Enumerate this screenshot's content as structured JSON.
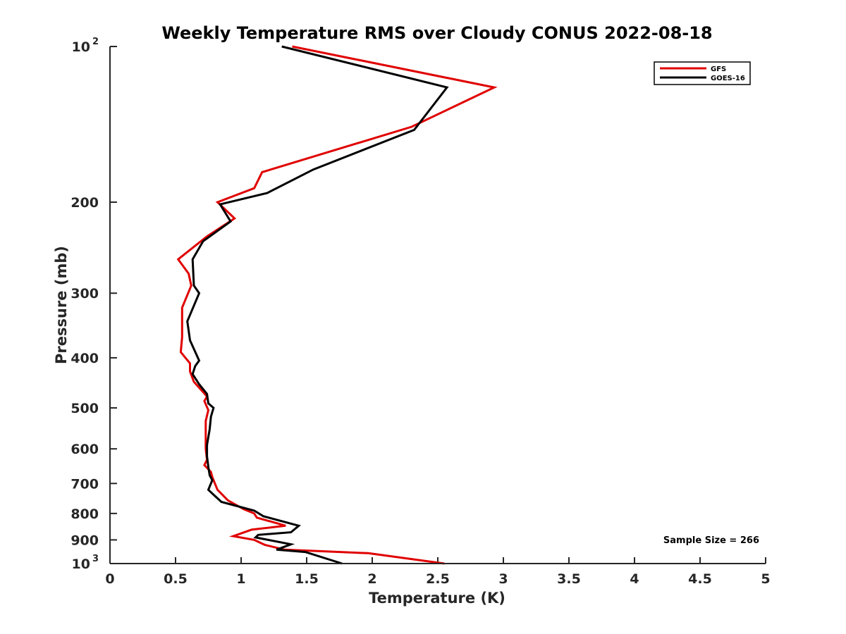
{
  "chart_data": {
    "type": "line",
    "title": "Weekly Temperature RMS over Cloudy CONUS 2022-08-18",
    "xlabel": "Temperature (K)",
    "ylabel": "Pressure (mb)",
    "xlim": [
      0,
      5
    ],
    "ylim": [
      100,
      1000
    ],
    "y_scale": "log",
    "y_reversed": true,
    "grid": false,
    "legend_position": "top-right",
    "x_ticks": [
      "0",
      "0.5",
      "1",
      "1.5",
      "2",
      "2.5",
      "3",
      "3.5",
      "4",
      "4.5",
      "5"
    ],
    "x_tick_values": [
      0,
      0.5,
      1,
      1.5,
      2,
      2.5,
      3,
      3.5,
      4,
      4.5,
      5
    ],
    "y_ticks": [
      {
        "value": 100,
        "base": "10",
        "exp": "2"
      },
      {
        "value": 200,
        "label": "200"
      },
      {
        "value": 300,
        "label": "300"
      },
      {
        "value": 400,
        "label": "400"
      },
      {
        "value": 500,
        "label": "500"
      },
      {
        "value": 600,
        "label": "600"
      },
      {
        "value": 700,
        "label": "700"
      },
      {
        "value": 800,
        "label": "800"
      },
      {
        "value": 900,
        "label": "900"
      },
      {
        "value": 1000,
        "base": "10",
        "exp": "3"
      }
    ],
    "series": [
      {
        "name": "GFS",
        "color": "#e00000",
        "points": [
          [
            1.39,
            100
          ],
          [
            2.93,
            120
          ],
          [
            2.3,
            143
          ],
          [
            1.16,
            175
          ],
          [
            1.1,
            188
          ],
          [
            0.82,
            200
          ],
          [
            0.95,
            215
          ],
          [
            0.74,
            233
          ],
          [
            0.52,
            258
          ],
          [
            0.6,
            275
          ],
          [
            0.62,
            290
          ],
          [
            0.55,
            320
          ],
          [
            0.55,
            365
          ],
          [
            0.54,
            390
          ],
          [
            0.61,
            410
          ],
          [
            0.61,
            425
          ],
          [
            0.64,
            445
          ],
          [
            0.74,
            475
          ],
          [
            0.72,
            485
          ],
          [
            0.75,
            505
          ],
          [
            0.73,
            530
          ],
          [
            0.73,
            555
          ],
          [
            0.73,
            600
          ],
          [
            0.74,
            630
          ],
          [
            0.72,
            645
          ],
          [
            0.77,
            665
          ],
          [
            0.78,
            680
          ],
          [
            0.8,
            700
          ],
          [
            0.82,
            720
          ],
          [
            0.9,
            755
          ],
          [
            1.02,
            785
          ],
          [
            1.1,
            800
          ],
          [
            1.12,
            815
          ],
          [
            1.34,
            845
          ],
          [
            1.08,
            860
          ],
          [
            0.94,
            885
          ],
          [
            1.1,
            900
          ],
          [
            1.18,
            920
          ],
          [
            1.33,
            940
          ],
          [
            1.97,
            955
          ],
          [
            2.55,
            1000
          ]
        ]
      },
      {
        "name": "GOES-16",
        "color": "#000000",
        "points": [
          [
            1.31,
            100
          ],
          [
            2.57,
            120
          ],
          [
            2.32,
            145
          ],
          [
            1.55,
            173
          ],
          [
            1.2,
            192
          ],
          [
            0.84,
            202
          ],
          [
            0.92,
            218
          ],
          [
            0.71,
            238
          ],
          [
            0.63,
            258
          ],
          [
            0.64,
            290
          ],
          [
            0.68,
            300
          ],
          [
            0.59,
            340
          ],
          [
            0.61,
            370
          ],
          [
            0.68,
            405
          ],
          [
            0.65,
            415
          ],
          [
            0.63,
            430
          ],
          [
            0.68,
            450
          ],
          [
            0.74,
            470
          ],
          [
            0.75,
            490
          ],
          [
            0.79,
            500
          ],
          [
            0.77,
            520
          ],
          [
            0.76,
            550
          ],
          [
            0.74,
            590
          ],
          [
            0.74,
            620
          ],
          [
            0.75,
            650
          ],
          [
            0.76,
            675
          ],
          [
            0.78,
            690
          ],
          [
            0.75,
            720
          ],
          [
            0.8,
            740
          ],
          [
            0.85,
            760
          ],
          [
            1.1,
            790
          ],
          [
            1.17,
            810
          ],
          [
            1.44,
            845
          ],
          [
            1.38,
            870
          ],
          [
            1.13,
            880
          ],
          [
            1.11,
            890
          ],
          [
            1.38,
            918
          ],
          [
            1.27,
            940
          ],
          [
            1.49,
            950
          ],
          [
            1.77,
            1000
          ]
        ]
      }
    ],
    "annotation": "Sample Size = 266"
  }
}
